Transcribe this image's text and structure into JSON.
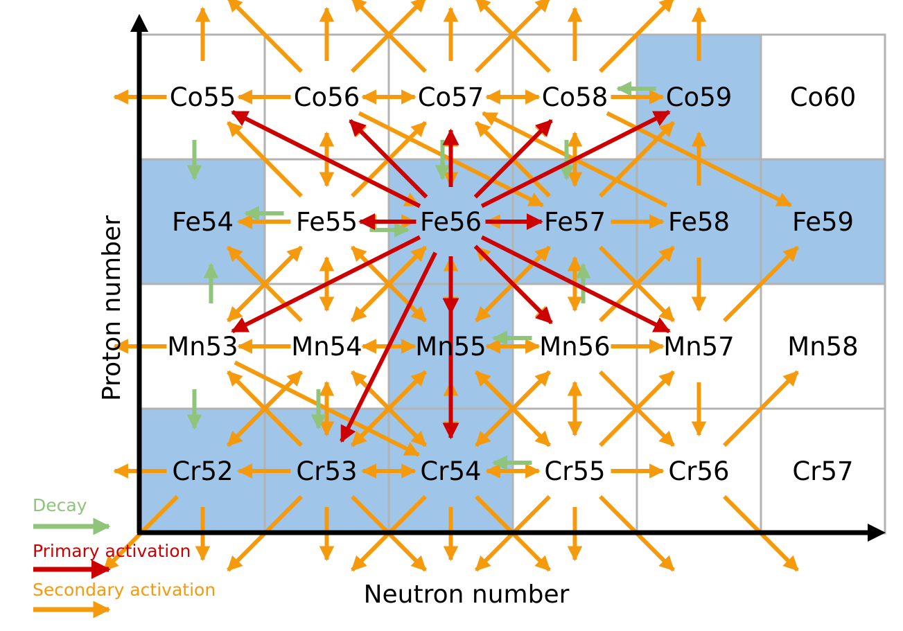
{
  "colors": {
    "stable_cell": "#9fc5e8",
    "other_cell": "#ffffff",
    "grid_line": "#b3b3b3",
    "axis": "#000000",
    "decay": "#8fc47a",
    "primary": "#cc0000",
    "secondary": "#f59a0c"
  },
  "axes": {
    "x_label": "Neutron number",
    "y_label": "Proton number"
  },
  "legend": {
    "decay": "Decay",
    "primary": "Primary activation",
    "secondary": "Secondary activation"
  },
  "target_nuclide": "Fe56",
  "rows": [
    {
      "element": "Co",
      "cells": [
        "Co55",
        "Co56",
        "Co57",
        "Co58",
        "Co59",
        "Co60"
      ]
    },
    {
      "element": "Fe",
      "cells": [
        "Fe54",
        "Fe55",
        "Fe56",
        "Fe57",
        "Fe58",
        "Fe59"
      ]
    },
    {
      "element": "Mn",
      "cells": [
        "Mn53",
        "Mn54",
        "Mn55",
        "Mn56",
        "Mn57",
        "Mn58"
      ]
    },
    {
      "element": "Cr",
      "cells": [
        "Cr52",
        "Cr53",
        "Cr54",
        "Cr55",
        "Cr56",
        "Cr57"
      ]
    }
  ],
  "stable": [
    "Co59",
    "Fe54",
    "Fe56",
    "Fe57",
    "Fe58",
    "Fe59",
    "Mn55",
    "Cr52",
    "Cr53",
    "Cr54"
  ],
  "primary_activation": [
    {
      "from": "Fe56",
      "to": "Co55"
    },
    {
      "from": "Fe56",
      "to": "Co56"
    },
    {
      "from": "Fe56",
      "to": "Co57"
    },
    {
      "from": "Fe56",
      "to": "Co58"
    },
    {
      "from": "Fe56",
      "to": "Co59"
    },
    {
      "from": "Fe56",
      "to": "Fe55"
    },
    {
      "from": "Fe56",
      "to": "Fe57"
    },
    {
      "from": "Fe56",
      "to": "Mn53"
    },
    {
      "from": "Fe56",
      "to": "Mn55"
    },
    {
      "from": "Fe56",
      "to": "Mn56"
    },
    {
      "from": "Fe56",
      "to": "Mn57"
    },
    {
      "from": "Fe56",
      "to": "Cr53"
    },
    {
      "from": "Fe56",
      "to": "Cr54"
    }
  ],
  "decay": [
    {
      "from": "Co59",
      "to": "Co58"
    },
    {
      "from": "Co55",
      "to": "Fe54"
    },
    {
      "from": "Co57",
      "to": "Fe56"
    },
    {
      "from": "Co58",
      "to": "Fe57"
    },
    {
      "from": "Fe55",
      "to": "Fe54"
    },
    {
      "from": "Fe55",
      "to": "Fe56"
    },
    {
      "from": "Mn53",
      "to": "Fe54"
    },
    {
      "from": "Mn56",
      "to": "Fe57"
    },
    {
      "from": "Mn56",
      "to": "Mn55"
    },
    {
      "from": "Mn53",
      "to": "Cr52"
    },
    {
      "from": "Mn54",
      "to": "Cr53"
    },
    {
      "from": "Cr55",
      "to": "Cr54"
    }
  ],
  "secondary_activation": [
    {
      "from": "Co55",
      "to": "Co54"
    },
    {
      "from": "Co56",
      "to": "Co55"
    },
    {
      "from": "Co56",
      "to": "Co57"
    },
    {
      "from": "Co57",
      "to": "Co56"
    },
    {
      "from": "Co57",
      "to": "Co58"
    },
    {
      "from": "Co58",
      "to": "Co57"
    },
    {
      "from": "Co58",
      "to": "Co59"
    },
    {
      "from": "Fe55",
      "to": "Fe54"
    },
    {
      "from": "Fe55",
      "to": "Fe56"
    },
    {
      "from": "Fe56",
      "to": "Fe55"
    },
    {
      "from": "Fe57",
      "to": "Fe56"
    },
    {
      "from": "Fe57",
      "to": "Fe58"
    },
    {
      "from": "Mn53",
      "to": "Mn52"
    },
    {
      "from": "Mn54",
      "to": "Mn53"
    },
    {
      "from": "Mn54",
      "to": "Mn55"
    },
    {
      "from": "Mn55",
      "to": "Mn54"
    },
    {
      "from": "Mn55",
      "to": "Mn56"
    },
    {
      "from": "Mn56",
      "to": "Mn55"
    },
    {
      "from": "Mn56",
      "to": "Mn57"
    },
    {
      "from": "Cr52",
      "to": "Cr51"
    },
    {
      "from": "Cr53",
      "to": "Cr52"
    },
    {
      "from": "Cr53",
      "to": "Cr54"
    },
    {
      "from": "Cr54",
      "to": "Cr53"
    },
    {
      "from": "Cr54",
      "to": "Cr55"
    },
    {
      "from": "Cr55",
      "to": "Cr54"
    },
    {
      "from": "Cr55",
      "to": "Cr56"
    },
    {
      "from": "Co56",
      "to": "Ni57"
    },
    {
      "from": "Co57",
      "to": "Ni58"
    },
    {
      "from": "Co58",
      "to": "Ni59"
    },
    {
      "from": "Co59",
      "to": "Ni60"
    },
    {
      "from": "Co56",
      "to": "Ni56"
    },
    {
      "from": "Co57",
      "to": "Ni57"
    },
    {
      "from": "Co58",
      "to": "Ni58"
    },
    {
      "from": "Co56",
      "to": "Ni58"
    },
    {
      "from": "Co57",
      "to": "Ni59"
    },
    {
      "from": "Co58",
      "to": "Ni60"
    },
    {
      "from": "Co55",
      "to": "Ni56"
    },
    {
      "from": "Fe55",
      "to": "Co56"
    },
    {
      "from": "Co56",
      "to": "Fe55"
    },
    {
      "from": "Fe56",
      "to": "Co57"
    },
    {
      "from": "Co57",
      "to": "Fe56"
    },
    {
      "from": "Fe57",
      "to": "Co58"
    },
    {
      "from": "Co58",
      "to": "Fe57"
    },
    {
      "from": "Fe55",
      "to": "Co55"
    },
    {
      "from": "Fe55",
      "to": "Co57"
    },
    {
      "from": "Fe56",
      "to": "Co56"
    },
    {
      "from": "Fe56",
      "to": "Co58"
    },
    {
      "from": "Fe57",
      "to": "Co57"
    },
    {
      "from": "Fe57",
      "to": "Co59"
    },
    {
      "from": "Fe58",
      "to": "Co59"
    },
    {
      "from": "Fe58",
      "to": "Co57"
    },
    {
      "from": "Co58",
      "to": "Fe59"
    },
    {
      "from": "Co56",
      "to": "Fe57"
    },
    {
      "from": "Co55",
      "to": "Fe56"
    },
    {
      "from": "Fe55",
      "to": "Mn54"
    },
    {
      "from": "Mn54",
      "to": "Fe55"
    },
    {
      "from": "Fe56",
      "to": "Mn55"
    },
    {
      "from": "Mn55",
      "to": "Fe56"
    },
    {
      "from": "Fe57",
      "to": "Mn56"
    },
    {
      "from": "Mn56",
      "to": "Fe57"
    },
    {
      "from": "Fe55",
      "to": "Mn53"
    },
    {
      "from": "Fe55",
      "to": "Mn55"
    },
    {
      "from": "Mn54",
      "to": "Fe54"
    },
    {
      "from": "Mn54",
      "to": "Fe56"
    },
    {
      "from": "Fe56",
      "to": "Mn54"
    },
    {
      "from": "Fe56",
      "to": "Mn56"
    },
    {
      "from": "Mn55",
      "to": "Fe55"
    },
    {
      "from": "Mn55",
      "to": "Fe57"
    },
    {
      "from": "Fe57",
      "to": "Mn55"
    },
    {
      "from": "Fe57",
      "to": "Mn57"
    },
    {
      "from": "Mn56",
      "to": "Fe56"
    },
    {
      "from": "Mn56",
      "to": "Fe58"
    },
    {
      "from": "Fe58",
      "to": "Mn57"
    },
    {
      "from": "Mn53",
      "to": "Fe55"
    },
    {
      "from": "Mn57",
      "to": "Fe59"
    },
    {
      "from": "Mn54",
      "to": "Cr53"
    },
    {
      "from": "Cr53",
      "to": "Mn54"
    },
    {
      "from": "Mn55",
      "to": "Cr54"
    },
    {
      "from": "Cr54",
      "to": "Mn55"
    },
    {
      "from": "Mn56",
      "to": "Cr55"
    },
    {
      "from": "Cr55",
      "to": "Mn56"
    },
    {
      "from": "Mn53",
      "to": "Cr54"
    },
    {
      "from": "Cr52",
      "to": "Mn54"
    },
    {
      "from": "Mn54",
      "to": "Cr52"
    },
    {
      "from": "Mn54",
      "to": "Cr54"
    },
    {
      "from": "Cr53",
      "to": "Mn53"
    },
    {
      "from": "Cr53",
      "to": "Mn55"
    },
    {
      "from": "Mn55",
      "to": "Cr53"
    },
    {
      "from": "Mn55",
      "to": "Cr55"
    },
    {
      "from": "Cr54",
      "to": "Mn54"
    },
    {
      "from": "Cr54",
      "to": "Mn56"
    },
    {
      "from": "Mn56",
      "to": "Cr54"
    },
    {
      "from": "Mn56",
      "to": "Cr56"
    },
    {
      "from": "Cr55",
      "to": "Mn55"
    },
    {
      "from": "Cr55",
      "to": "Mn57"
    },
    {
      "from": "Mn57",
      "to": "Cr56"
    },
    {
      "from": "Cr56",
      "to": "Mn58"
    },
    {
      "from": "Cr52",
      "to": "V51"
    },
    {
      "from": "Cr53",
      "to": "V52"
    },
    {
      "from": "Cr54",
      "to": "V53"
    },
    {
      "from": "Cr55",
      "to": "V54"
    },
    {
      "from": "Cr53",
      "to": "V51"
    },
    {
      "from": "Cr53",
      "to": "V53"
    },
    {
      "from": "Cr54",
      "to": "V52"
    },
    {
      "from": "Cr54",
      "to": "V54"
    },
    {
      "from": "Cr55",
      "to": "V53"
    },
    {
      "from": "Cr55",
      "to": "V55"
    },
    {
      "from": "Cr52",
      "to": "V50"
    },
    {
      "from": "Cr56",
      "to": "V56"
    }
  ]
}
